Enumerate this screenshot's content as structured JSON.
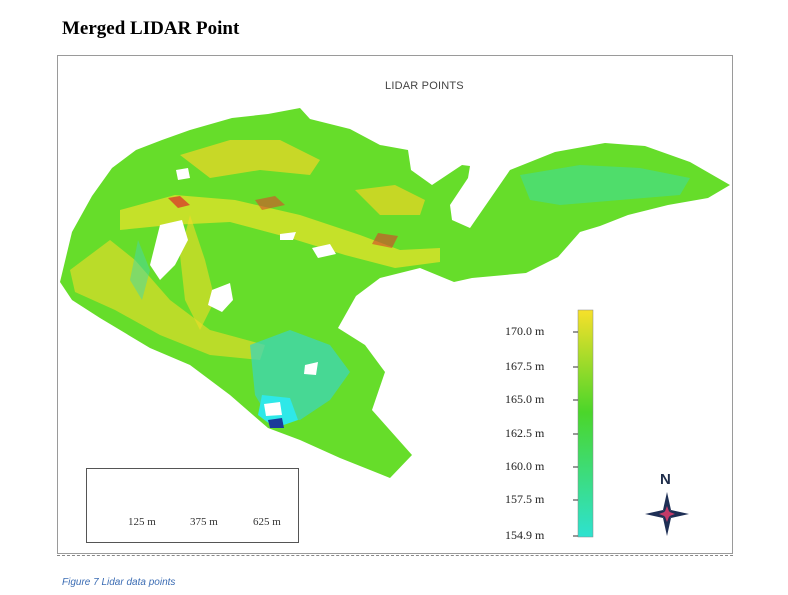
{
  "heading": "Merged LIDAR Point",
  "map": {
    "title": "LIDAR POINTS",
    "legend": {
      "labels": [
        "170.0 m",
        "167.5 m",
        "165.0 m",
        "162.5 m",
        "160.0 m",
        "157.5 m",
        "154.9 m"
      ],
      "colors": {
        "high": "#f6e12a",
        "mid": "#3ad62e",
        "low": "#2fe0c9"
      }
    },
    "scale_bar": {
      "labels": [
        "125 m",
        "375 m",
        "625 m"
      ]
    },
    "north_label": "N",
    "colors": {
      "surface": "#66dd2a",
      "high_ridge": "#f0d820",
      "low_area": "#34dcc8",
      "red_edge": "#d8402a"
    }
  },
  "caption": "Figure 7 Lidar data points"
}
